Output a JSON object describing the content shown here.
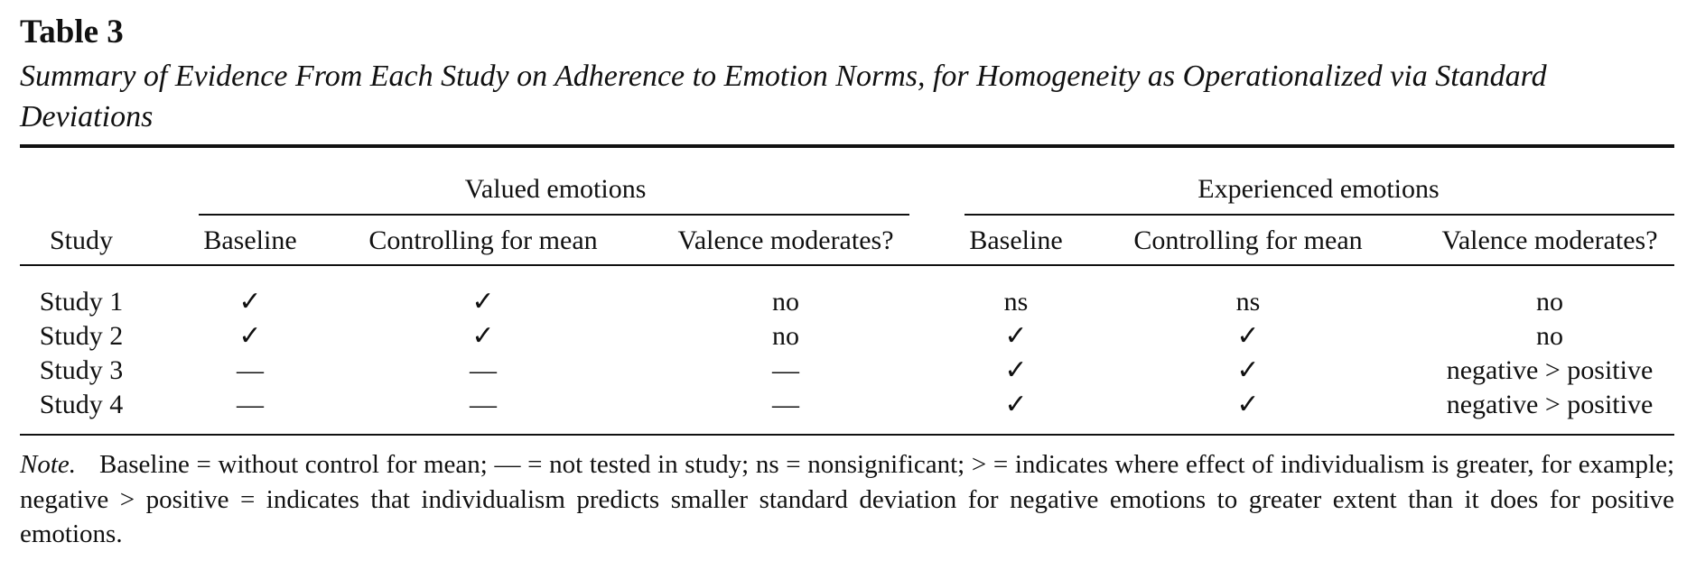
{
  "table": {
    "number": "Table 3",
    "title": "Summary of Evidence From Each Study on Adherence to Emotion Norms, for Homogeneity as Operationalized via Standard Deviations",
    "group_headers": [
      "Valued emotions",
      "Experienced emotions"
    ],
    "column_headers": [
      "Study",
      "Baseline",
      "Controlling for mean",
      "Valence moderates?",
      "Baseline",
      "Controlling for mean",
      "Valence moderates?"
    ],
    "rows": [
      [
        "Study 1",
        "✓",
        "✓",
        "no",
        "ns",
        "ns",
        "no"
      ],
      [
        "Study 2",
        "✓",
        "✓",
        "no",
        "✓",
        "✓",
        "no"
      ],
      [
        "Study 3",
        "—",
        "—",
        "—",
        "✓",
        "✓",
        "negative > positive"
      ],
      [
        "Study 4",
        "—",
        "—",
        "—",
        "✓",
        "✓",
        "negative > positive"
      ]
    ]
  },
  "note": {
    "label": "Note.",
    "text": "Baseline = without control for mean; — = not tested in study; ns = nonsignificant; > = indicates where effect of individualism is greater, for example; negative > positive = indicates that individualism predicts smaller standard deviation for negative emotions to greater extent than it does for positive emotions."
  }
}
